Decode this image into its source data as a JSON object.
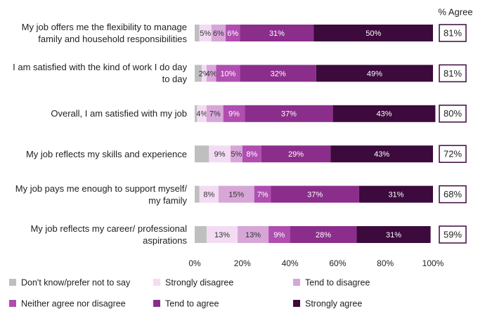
{
  "chart_data": {
    "type": "bar",
    "orientation": "horizontal",
    "stacked": true,
    "categories": [
      "My job offers me the flexibility to manage family and household responsibilities",
      "I am satisfied with the kind of work I do day to day",
      "Overall, I am satisfied with my job",
      "My job reflects my skills and experience",
      "My job pays me enough to support myself/ my family",
      "My job reflects my career/ professional aspirations"
    ],
    "series": [
      {
        "name": "Don't know/prefer not to say",
        "color": "#bfbfbf",
        "values": [
          2,
          3,
          1,
          6,
          2,
          5
        ]
      },
      {
        "name": "Strongly disagree",
        "color": "#f3dcf3",
        "values": [
          5,
          2,
          4,
          9,
          8,
          13
        ],
        "value_labels": [
          "5%",
          "2%",
          "4%",
          "9%",
          "8%",
          "13%"
        ]
      },
      {
        "name": "Tend to disagree",
        "color": "#d7a6d7",
        "values": [
          6,
          4,
          7,
          5,
          15,
          13
        ],
        "value_labels": [
          "6%",
          "4%",
          "7%",
          "5%",
          "15%",
          "13%"
        ]
      },
      {
        "name": "Neither agree nor disagree",
        "color": "#b04db0",
        "values": [
          6,
          10,
          9,
          8,
          7,
          9
        ],
        "value_labels": [
          "6%",
          "10%",
          "9%",
          "8%",
          "7%",
          "9%"
        ]
      },
      {
        "name": "Tend to agree",
        "color": "#8b2e8b",
        "values": [
          31,
          32,
          37,
          29,
          37,
          28
        ],
        "value_labels": [
          "31%",
          "32%",
          "37%",
          "29%",
          "37%",
          "28%"
        ]
      },
      {
        "name": "Strongly agree",
        "color": "#3c0a3c",
        "values": [
          50,
          49,
          43,
          43,
          31,
          31
        ],
        "value_labels": [
          "50%",
          "49%",
          "43%",
          "43%",
          "31%",
          "31%"
        ]
      }
    ],
    "xlim": [
      0,
      100
    ],
    "xticks": [
      {
        "value": 0,
        "label": "0%"
      },
      {
        "value": 20,
        "label": "20%"
      },
      {
        "value": 40,
        "label": "40%"
      },
      {
        "value": 60,
        "label": "60%"
      },
      {
        "value": 80,
        "label": "80%"
      },
      {
        "value": 100,
        "label": "100%"
      }
    ],
    "agree": {
      "title": "% Agree",
      "values": [
        81,
        81,
        80,
        72,
        68,
        59
      ],
      "value_labels": [
        "81%",
        "81%",
        "80%",
        "72%",
        "68%",
        "59%"
      ]
    }
  }
}
